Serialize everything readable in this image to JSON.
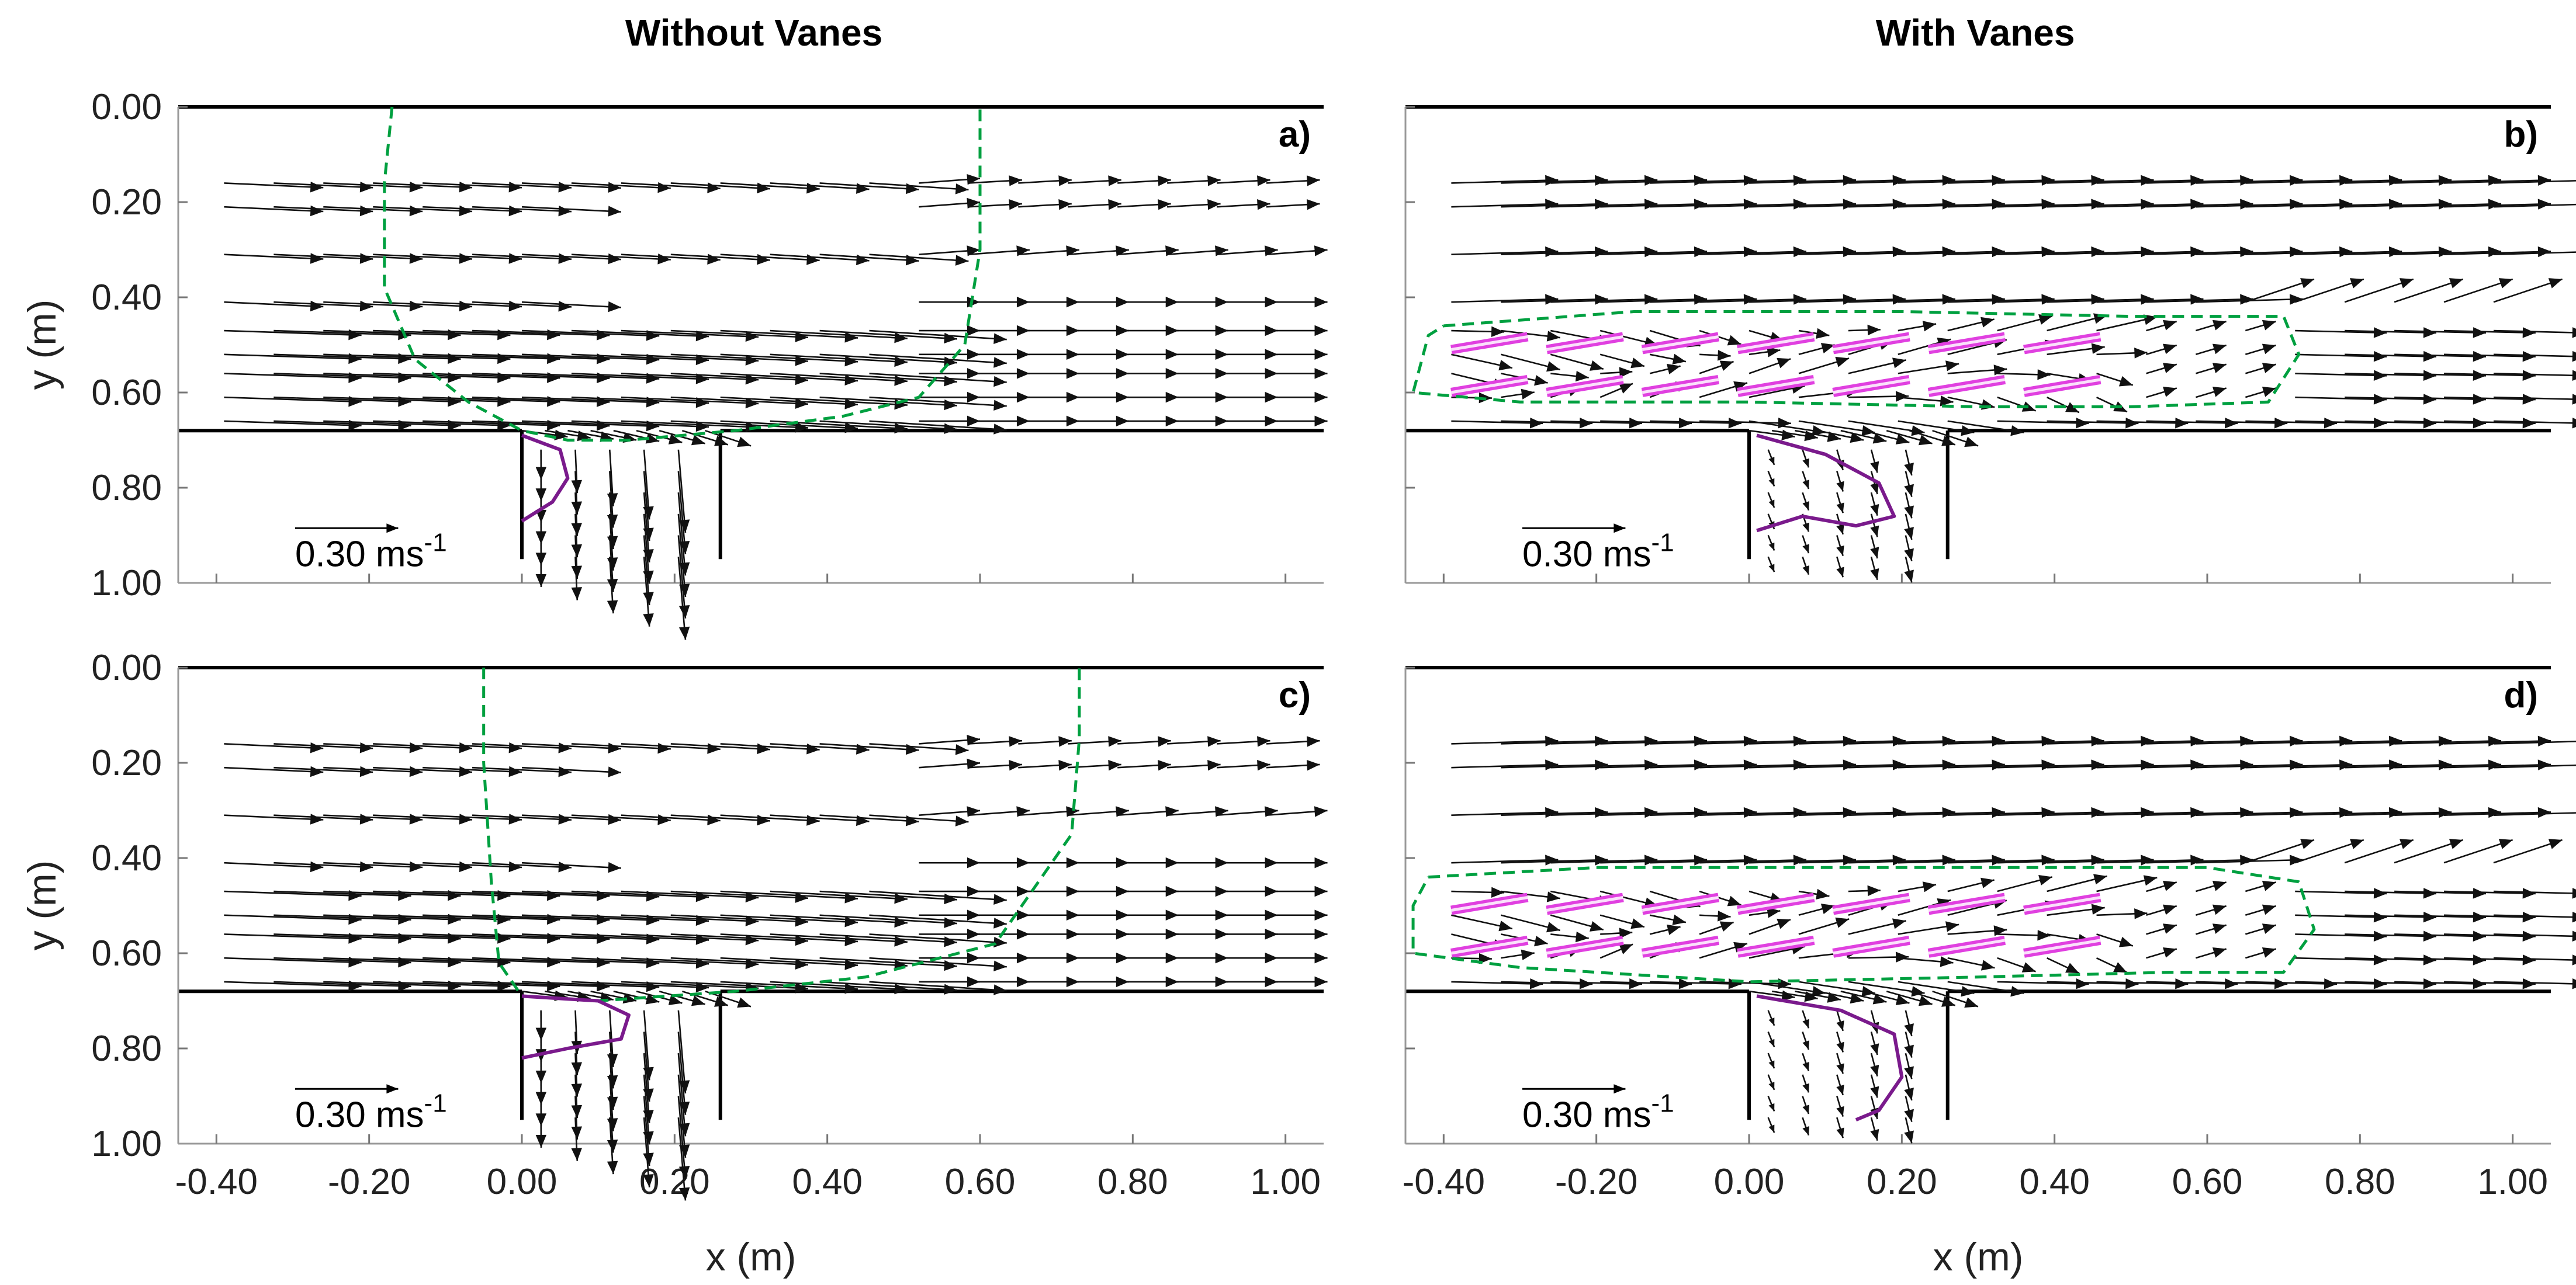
{
  "chart_data": {
    "type": "quiver",
    "column_titles": [
      "Without Vanes",
      "With Vanes"
    ],
    "xlabel": "x (m)",
    "ylabel": "y (m)",
    "x_ticks": [
      "-0.40",
      "-0.20",
      "0.00",
      "0.20",
      "0.40",
      "0.60",
      "0.80",
      "1.00"
    ],
    "y_ticks": [
      "0.00",
      "0.20",
      "0.40",
      "0.60",
      "0.80",
      "1.00"
    ],
    "xlim": [
      -0.45,
      1.05
    ],
    "ylim": [
      0.0,
      1.0
    ],
    "y_inverted": true,
    "channel": {
      "bank_y": 0.68,
      "branch_x": [
        0.0,
        0.26
      ],
      "branch_bottom_y": 0.95
    },
    "scale_arrow_value": 0.3,
    "scale_label": "0.30 ms",
    "scale_label_sup": "-1",
    "colors": {
      "vectors": "#111111",
      "separation_zone": "#00a040",
      "recirculation": "#7a1a8c",
      "vanes": "#e040e0"
    },
    "panels": [
      {
        "label": "a)",
        "vanes": false,
        "separation_zone": [
          [
            -0.17,
            0.0
          ],
          [
            -0.18,
            0.16
          ],
          [
            -0.18,
            0.38
          ],
          [
            -0.14,
            0.53
          ],
          [
            -0.07,
            0.62
          ],
          [
            0.0,
            0.68
          ],
          [
            0.06,
            0.7
          ],
          [
            0.14,
            0.7
          ],
          [
            0.28,
            0.68
          ],
          [
            0.42,
            0.65
          ],
          [
            0.52,
            0.61
          ],
          [
            0.58,
            0.5
          ],
          [
            0.6,
            0.3
          ],
          [
            0.6,
            0.12
          ],
          [
            0.6,
            0.0
          ]
        ],
        "recirculation": [
          [
            0.0,
            0.69
          ],
          [
            0.05,
            0.72
          ],
          [
            0.06,
            0.78
          ],
          [
            0.04,
            0.83
          ],
          [
            0.0,
            0.87
          ]
        ]
      },
      {
        "label": "b)",
        "vanes": true,
        "separation_zone": [
          [
            -0.4,
            0.46
          ],
          [
            -0.15,
            0.43
          ],
          [
            0.2,
            0.43
          ],
          [
            0.5,
            0.44
          ],
          [
            0.7,
            0.44
          ],
          [
            0.72,
            0.52
          ],
          [
            0.68,
            0.62
          ],
          [
            0.5,
            0.63
          ],
          [
            0.3,
            0.63
          ],
          [
            0.0,
            0.62
          ],
          [
            -0.3,
            0.62
          ],
          [
            -0.44,
            0.6
          ],
          [
            -0.42,
            0.48
          ],
          [
            -0.4,
            0.46
          ]
        ],
        "recirculation": [
          [
            0.01,
            0.69
          ],
          [
            0.1,
            0.73
          ],
          [
            0.17,
            0.79
          ],
          [
            0.19,
            0.86
          ],
          [
            0.14,
            0.88
          ],
          [
            0.07,
            0.86
          ],
          [
            0.01,
            0.89
          ]
        ]
      },
      {
        "label": "c)",
        "vanes": false,
        "separation_zone": [
          [
            -0.05,
            0.0
          ],
          [
            -0.05,
            0.2
          ],
          [
            -0.04,
            0.45
          ],
          [
            -0.03,
            0.62
          ],
          [
            0.0,
            0.69
          ],
          [
            0.1,
            0.7
          ],
          [
            0.28,
            0.68
          ],
          [
            0.45,
            0.65
          ],
          [
            0.62,
            0.58
          ],
          [
            0.72,
            0.35
          ],
          [
            0.73,
            0.15
          ],
          [
            0.73,
            0.0
          ]
        ],
        "recirculation": [
          [
            0.0,
            0.69
          ],
          [
            0.1,
            0.7
          ],
          [
            0.14,
            0.73
          ],
          [
            0.13,
            0.78
          ],
          [
            0.06,
            0.8
          ],
          [
            0.0,
            0.82
          ]
        ]
      },
      {
        "label": "d)",
        "vanes": true,
        "separation_zone": [
          [
            -0.42,
            0.44
          ],
          [
            -0.2,
            0.42
          ],
          [
            0.2,
            0.42
          ],
          [
            0.6,
            0.42
          ],
          [
            0.72,
            0.45
          ],
          [
            0.74,
            0.55
          ],
          [
            0.7,
            0.64
          ],
          [
            0.55,
            0.64
          ],
          [
            0.3,
            0.65
          ],
          [
            0.0,
            0.66
          ],
          [
            -0.3,
            0.63
          ],
          [
            -0.44,
            0.6
          ],
          [
            -0.44,
            0.5
          ],
          [
            -0.42,
            0.44
          ]
        ],
        "recirculation": [
          [
            0.01,
            0.69
          ],
          [
            0.12,
            0.72
          ],
          [
            0.19,
            0.77
          ],
          [
            0.2,
            0.86
          ],
          [
            0.17,
            0.93
          ],
          [
            0.14,
            0.95
          ]
        ]
      }
    ]
  }
}
